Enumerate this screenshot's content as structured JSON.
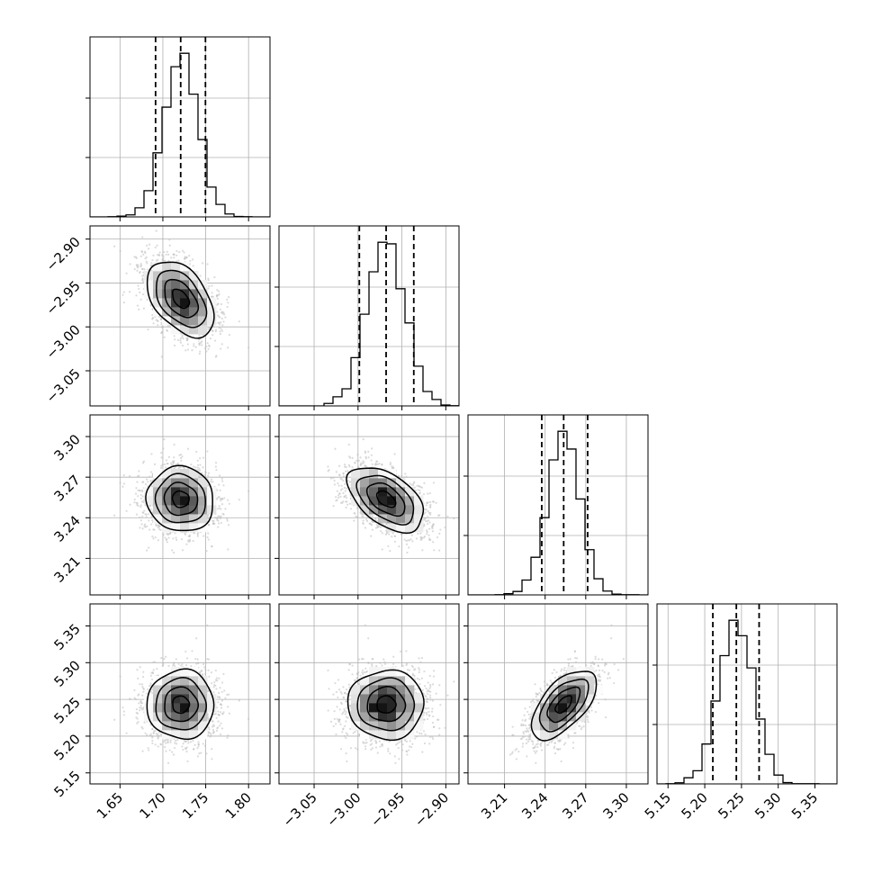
{
  "chart_data": {
    "type": "corner",
    "title": "",
    "xlabel": "",
    "ylabel": "",
    "grid": true,
    "parameters": [
      {
        "mean": 1.7208,
        "std": 0.0195,
        "range": [
          1.615,
          1.825
        ],
        "quantiles": [
          1.6915,
          1.7208,
          1.7497
        ],
        "ticks": [
          1.65,
          1.7,
          1.75,
          1.8
        ],
        "tick_labels": [
          "1.65",
          "1.70",
          "1.75",
          "1.80"
        ]
      },
      {
        "mean": -2.968,
        "std": 0.0216,
        "range": [
          -3.09,
          -2.885
        ],
        "quantiles": [
          -2.9985,
          -2.968,
          -2.9365
        ],
        "ticks": [
          -3.05,
          -3.0,
          -2.95,
          -2.9
        ],
        "tick_labels": [
          "−3.05",
          "−3.00",
          "−2.95",
          "−2.90"
        ]
      },
      {
        "mean": 3.2537,
        "std": 0.012,
        "range": [
          3.183,
          3.316
        ],
        "quantiles": [
          3.2375,
          3.2537,
          3.2714
        ],
        "ticks": [
          3.21,
          3.24,
          3.27,
          3.3
        ],
        "tick_labels": [
          "3.21",
          "3.24",
          "3.27",
          "3.30"
        ]
      },
      {
        "mean": 5.243,
        "std": 0.0235,
        "range": [
          5.135,
          5.38
        ],
        "quantiles": [
          5.211,
          5.243,
          5.274
        ],
        "ticks": [
          5.15,
          5.2,
          5.25,
          5.3,
          5.35
        ],
        "tick_labels": [
          "5.15",
          "5.20",
          "5.25",
          "5.30",
          "5.35"
        ]
      }
    ],
    "correlations": [
      {
        "i": 1,
        "j": 0,
        "rho": -0.45
      },
      {
        "i": 2,
        "j": 0,
        "rho": -0.05
      },
      {
        "i": 2,
        "j": 1,
        "rho": -0.5
      },
      {
        "i": 3,
        "j": 0,
        "rho": 0.0
      },
      {
        "i": 3,
        "j": 1,
        "rho": 0.0
      },
      {
        "i": 3,
        "j": 2,
        "rho": 0.6
      }
    ],
    "histogram_bins": 20,
    "quantile_levels": [
      0.16,
      0.5,
      0.84
    ],
    "colors": {
      "line": "#000000",
      "scatter": "#bdbdbd",
      "grid": "#b0b0b0"
    }
  }
}
